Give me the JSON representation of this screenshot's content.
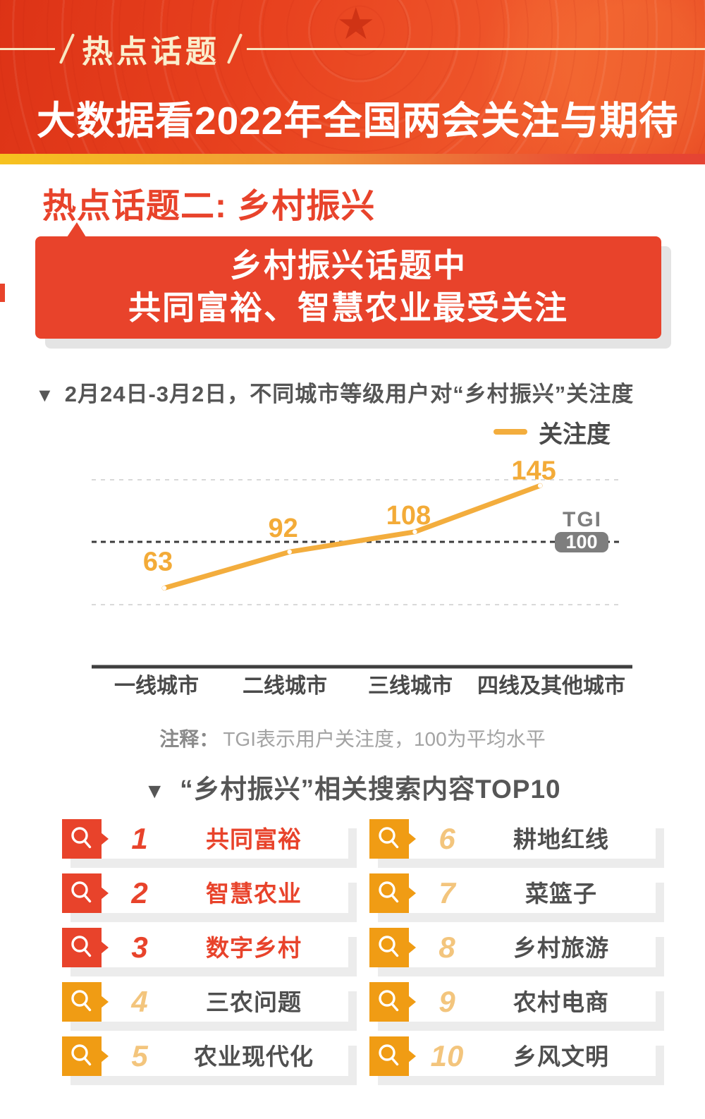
{
  "header": {
    "badge": "热点话题",
    "title": "大数据看2022年全国两会关注与期待"
  },
  "section": {
    "heading": "热点话题二: 乡村振兴",
    "banner_line1": "乡村振兴话题中",
    "banner_line2": "共同富裕、智慧农业最受关注"
  },
  "chart": {
    "title_marker": "▼",
    "title": "2月24日-3月2日，不同城市等级用户对“乡村振兴”关注度",
    "legend": "关注度",
    "tgi_label": "TGI",
    "tgi_value": "100",
    "note_prefix": "注释：",
    "note_text": "TGI表示用户关注度，100为平均水平"
  },
  "chart_data": {
    "type": "line",
    "title": "2月24日-3月2日，不同城市等级用户对“乡村振兴”关注度",
    "categories": [
      "一线城市",
      "二线城市",
      "三线城市",
      "四线及其他城市"
    ],
    "series": [
      {
        "name": "关注度",
        "values": [
          63,
          92,
          108,
          145
        ]
      }
    ],
    "baseline": {
      "label": "TGI",
      "value": 100,
      "note": "TGI表示用户关注度，100为平均水平"
    },
    "ylim": [
      45,
      155
    ],
    "grid": "three horizontal dashed gridlines; middle dark dashed line marks TGI=100",
    "legend_position": "top-right",
    "colors": {
      "line": "#F3AD3D",
      "value_labels": "#F3AB38",
      "baseline_badge": "#7E7E7E"
    }
  },
  "top10": {
    "title_marker": "▼",
    "title": "“乡村振兴”相关搜索内容TOP10",
    "items": [
      {
        "rank": "1",
        "label": "共同富裕",
        "highlight": true
      },
      {
        "rank": "2",
        "label": "智慧农业",
        "highlight": true
      },
      {
        "rank": "3",
        "label": "数字乡村",
        "highlight": true
      },
      {
        "rank": "4",
        "label": "三农问题",
        "highlight": false
      },
      {
        "rank": "5",
        "label": "农业现代化",
        "highlight": false
      },
      {
        "rank": "6",
        "label": "耕地红线",
        "highlight": false
      },
      {
        "rank": "7",
        "label": "菜篮子",
        "highlight": false
      },
      {
        "rank": "8",
        "label": "乡村旅游",
        "highlight": false
      },
      {
        "rank": "9",
        "label": "农村电商",
        "highlight": false
      },
      {
        "rank": "10",
        "label": "乡风文明",
        "highlight": false
      }
    ]
  },
  "colors": {
    "primary_red": "#E8432B",
    "header_red": "#E8421F",
    "orange": "#F09C14",
    "tan_number": "#F3C57D",
    "chart_orange": "#F3AD3D",
    "cream": "#F9EECD",
    "dark_text": "#4A4A4A",
    "note_gray": "#A3A3A3",
    "tgi_badge_gray": "#7E7E7E",
    "star_icon": "★"
  }
}
